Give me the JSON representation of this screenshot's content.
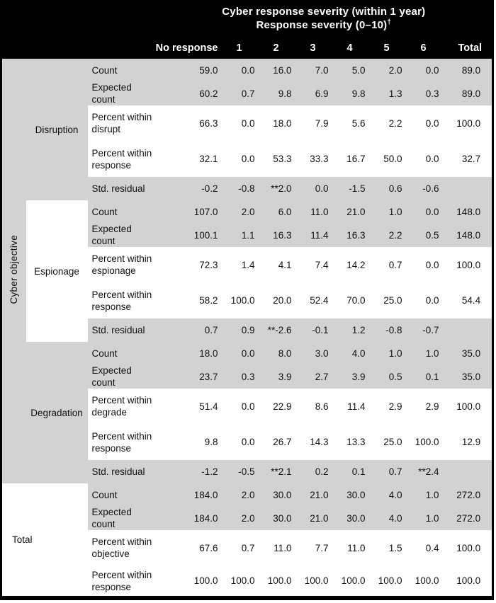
{
  "colors": {
    "header_bg": "#000000",
    "header_text": "#ffffff",
    "shade_gray": "#d2d2d2",
    "shade_white": "#ffffff",
    "body_text": "#111111",
    "border": "#000000"
  },
  "header": {
    "title_line1": "Cyber response severity (within 1 year)",
    "title_line2": "Response severity (0–10)",
    "footnote_marker": "†",
    "columns": [
      "No response",
      "1",
      "2",
      "3",
      "4",
      "5",
      "6",
      "Total"
    ]
  },
  "row_axis_label": "Cyber objective",
  "sections": [
    {
      "objective": "Disruption",
      "highlight": false,
      "rows": [
        {
          "label": "Count",
          "values": [
            "59.0",
            "0.0",
            "16.0",
            "7.0",
            "5.0",
            "2.0",
            "0.0",
            "89.0"
          ]
        },
        {
          "label": "Expected count",
          "values": [
            "60.2",
            "0.7",
            "9.8",
            "6.9",
            "9.8",
            "1.3",
            "0.3",
            "89.0"
          ]
        },
        {
          "label": "Percent within disrupt",
          "values": [
            "66.3",
            "0.0",
            "18.0",
            "7.9",
            "5.6",
            "2.2",
            "0.0",
            "100.0"
          ]
        },
        {
          "label": "Percent within response",
          "values": [
            "32.1",
            "0.0",
            "53.3",
            "33.3",
            "16.7",
            "50.0",
            "0.0",
            "32.7"
          ]
        },
        {
          "label": "Std. residual",
          "values": [
            "-0.2",
            "-0.8",
            "**2.0",
            "0.0",
            "-1.5",
            "0.6",
            "-0.6",
            ""
          ]
        }
      ]
    },
    {
      "objective": "Espionage",
      "highlight": true,
      "rows": [
        {
          "label": "Count",
          "values": [
            "107.0",
            "2.0",
            "6.0",
            "11.0",
            "21.0",
            "1.0",
            "0.0",
            "148.0"
          ]
        },
        {
          "label": "Expected count",
          "values": [
            "100.1",
            "1.1",
            "16.3",
            "11.4",
            "16.3",
            "2.2",
            "0.5",
            "148.0"
          ]
        },
        {
          "label": "Percent within espionage",
          "values": [
            "72.3",
            "1.4",
            "4.1",
            "7.4",
            "14.2",
            "0.7",
            "0.0",
            "100.0"
          ]
        },
        {
          "label": "Percent within response",
          "values": [
            "58.2",
            "100.0",
            "20.0",
            "52.4",
            "70.0",
            "25.0",
            "0.0",
            "54.4"
          ]
        },
        {
          "label": "Std. residual",
          "values": [
            "0.7",
            "0.9",
            "**-2.6",
            "-0.1",
            "1.2",
            "-0.8",
            "-0.7",
            ""
          ]
        }
      ]
    },
    {
      "objective": "Degradation",
      "highlight": false,
      "rows": [
        {
          "label": "Count",
          "values": [
            "18.0",
            "0.0",
            "8.0",
            "3.0",
            "4.0",
            "1.0",
            "1.0",
            "35.0"
          ]
        },
        {
          "label": "Expected count",
          "values": [
            "23.7",
            "0.3",
            "3.9",
            "2.7",
            "3.9",
            "0.5",
            "0.1",
            "35.0"
          ]
        },
        {
          "label": "Percent within degrade",
          "values": [
            "51.4",
            "0.0",
            "22.9",
            "8.6",
            "11.4",
            "2.9",
            "2.9",
            "100.0"
          ]
        },
        {
          "label": "Percent within response",
          "values": [
            "9.8",
            "0.0",
            "26.7",
            "14.3",
            "13.3",
            "25.0",
            "100.0",
            "12.9"
          ]
        },
        {
          "label": "Std. residual",
          "values": [
            "-1.2",
            "-0.5",
            "**2.1",
            "0.2",
            "0.1",
            "0.7",
            "**2.4",
            ""
          ]
        }
      ]
    }
  ],
  "total_section": {
    "label": "Total",
    "rows": [
      {
        "label": "Count",
        "values": [
          "184.0",
          "2.0",
          "30.0",
          "21.0",
          "30.0",
          "4.0",
          "1.0",
          "272.0"
        ]
      },
      {
        "label": "Expected count",
        "values": [
          "184.0",
          "2.0",
          "30.0",
          "21.0",
          "30.0",
          "4.0",
          "1.0",
          "272.0"
        ]
      },
      {
        "label": "Percent within objective",
        "values": [
          "67.6",
          "0.7",
          "11.0",
          "7.7",
          "11.0",
          "1.5",
          "0.4",
          "100.0"
        ]
      },
      {
        "label": "Percent within response",
        "values": [
          "100.0",
          "100.0",
          "100.0",
          "100.0",
          "100.0",
          "100.0",
          "100.0",
          "100.0"
        ]
      }
    ]
  }
}
